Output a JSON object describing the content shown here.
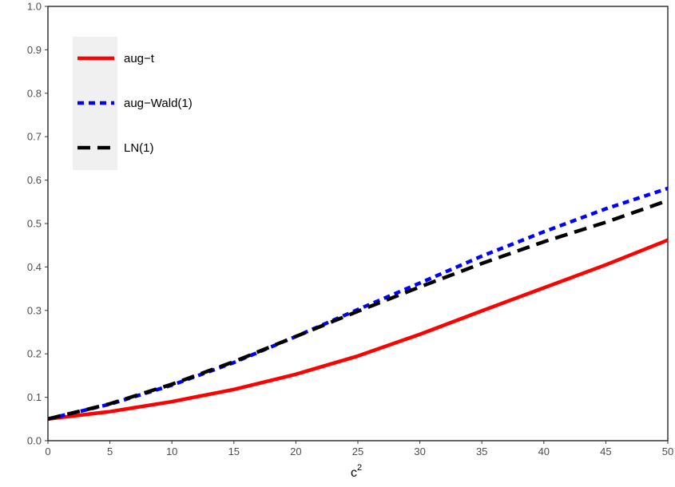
{
  "chart_data": {
    "type": "line",
    "title": "",
    "xlabel": "c",
    "xlabel_superscript": "2",
    "ylabel": "",
    "xlim": [
      0,
      50
    ],
    "ylim": [
      0,
      1
    ],
    "x_ticks": [
      0,
      5,
      10,
      15,
      20,
      25,
      30,
      35,
      40,
      45,
      50
    ],
    "y_ticks": [
      0.0,
      0.1,
      0.2,
      0.3,
      0.4,
      0.5,
      0.6,
      0.7,
      0.8,
      0.9,
      1.0
    ],
    "y_tick_labels": [
      "0.0",
      "0.1",
      "0.2",
      "0.3",
      "0.4",
      "0.5",
      "0.6",
      "0.7",
      "0.8",
      "0.9",
      "1.0"
    ],
    "grid": false,
    "legend_position": "top-left",
    "x": [
      0,
      5,
      10,
      15,
      20,
      25,
      30,
      35,
      40,
      45,
      50
    ],
    "series": [
      {
        "name": "aug−t",
        "color": "#ff0000",
        "dash": "solid",
        "values": [
          0.05,
          0.067,
          0.09,
          0.118,
          0.153,
          0.195,
          0.245,
          0.299,
          0.352,
          0.405,
          0.462
        ]
      },
      {
        "name": "aug−Wald(1)",
        "color": "#0000ff",
        "dash": "dotted",
        "values": [
          0.05,
          0.084,
          0.128,
          0.18,
          0.24,
          0.302,
          0.363,
          0.425,
          0.481,
          0.534,
          0.581
        ]
      },
      {
        "name": "LN(1)",
        "color": "#000000",
        "dash": "dashed",
        "values": [
          0.05,
          0.085,
          0.13,
          0.182,
          0.24,
          0.298,
          0.354,
          0.408,
          0.458,
          0.503,
          0.553
        ]
      }
    ]
  }
}
